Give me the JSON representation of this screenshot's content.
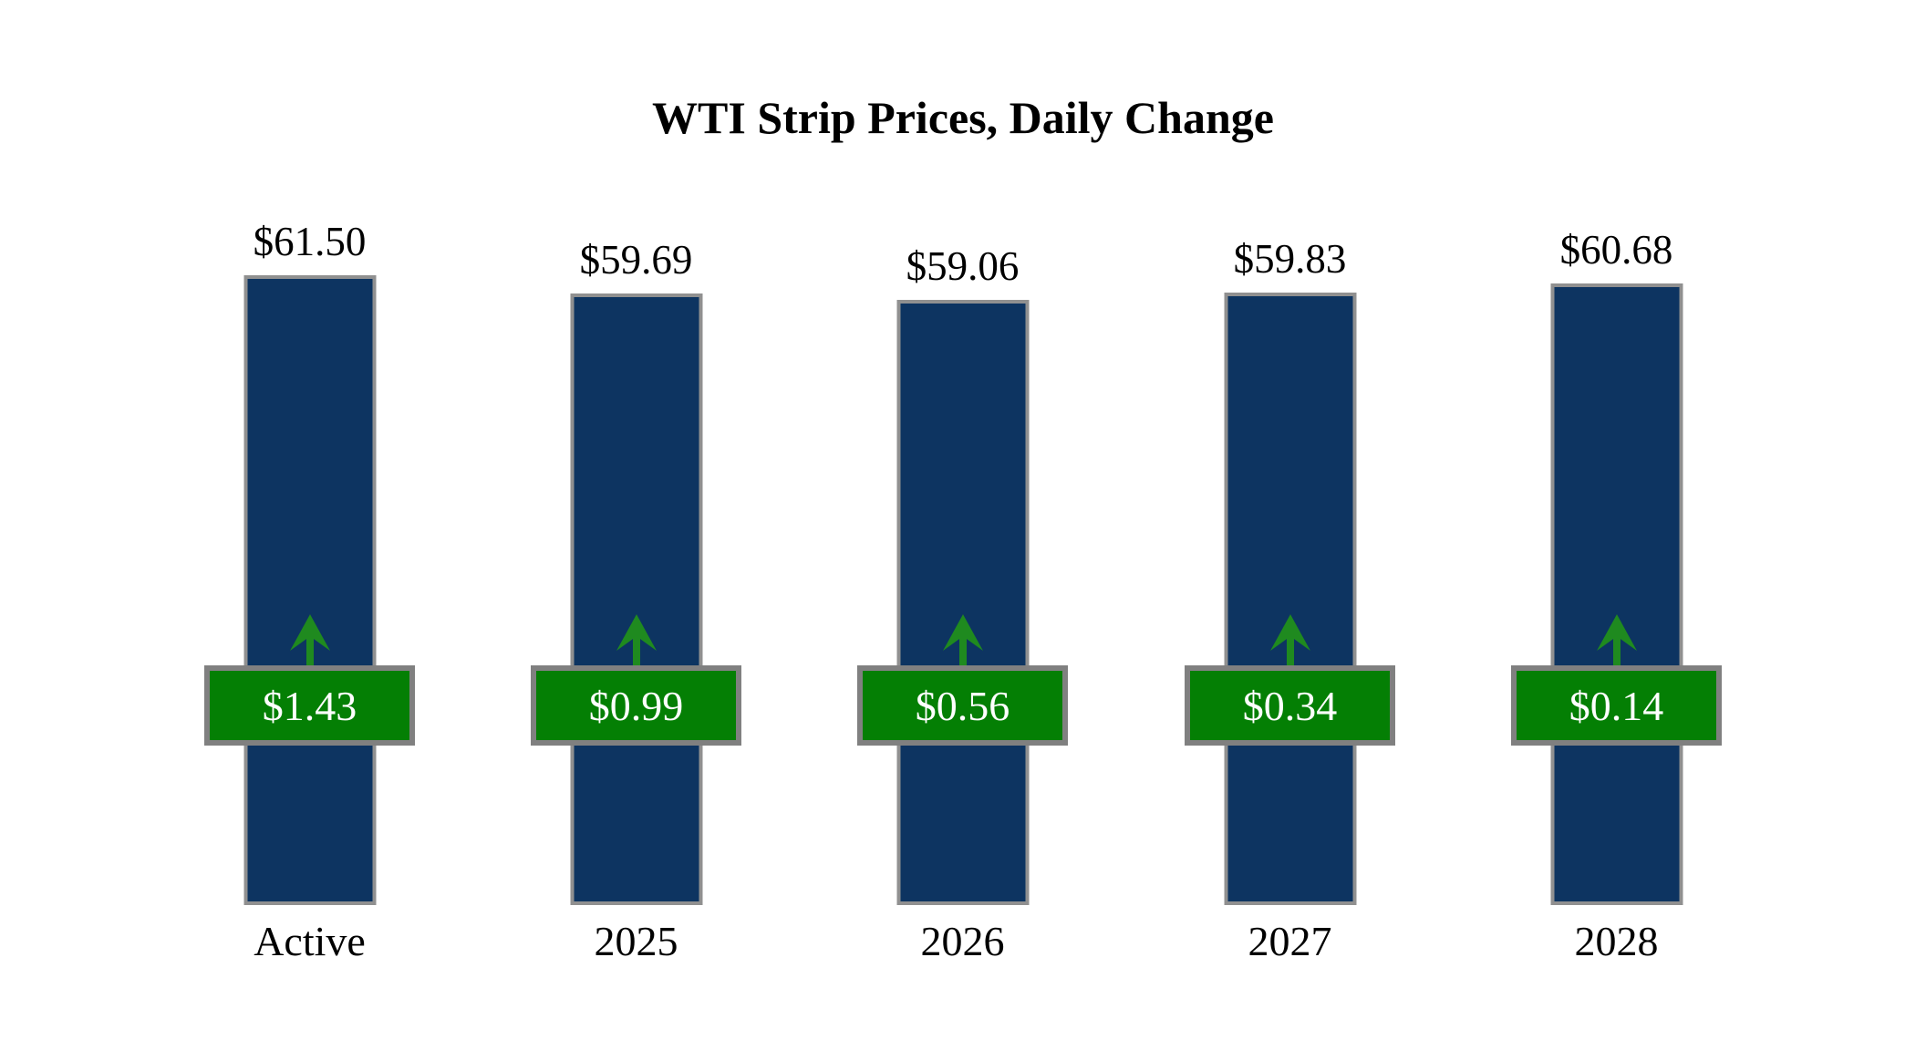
{
  "title": "WTI Strip Prices, Daily Change",
  "chart_data": {
    "type": "bar",
    "categories": [
      "Active",
      "2025",
      "2026",
      "2027",
      "2028"
    ],
    "series": [
      {
        "name": "Strip Price",
        "values": [
          61.5,
          59.69,
          59.06,
          59.83,
          60.68
        ]
      },
      {
        "name": "Daily Change",
        "values": [
          1.43,
          0.99,
          0.56,
          0.34,
          0.14
        ]
      }
    ],
    "columns": [
      {
        "category": "Active",
        "price_label": "$61.50",
        "change_label": "$1.43",
        "direction": "up"
      },
      {
        "category": "2025",
        "price_label": "$59.69",
        "change_label": "$0.99",
        "direction": "up"
      },
      {
        "category": "2026",
        "price_label": "$59.06",
        "change_label": "$0.56",
        "direction": "up"
      },
      {
        "category": "2027",
        "price_label": "$59.83",
        "change_label": "$0.34",
        "direction": "up"
      },
      {
        "category": "2028",
        "price_label": "$60.68",
        "change_label": "$0.14",
        "direction": "up"
      }
    ],
    "title": "WTI Strip Prices, Daily Change",
    "xlabel": "",
    "ylabel": "",
    "ylim": [
      0,
      61.5
    ],
    "grid": false,
    "legend": "none",
    "colors": {
      "bar_fill": "#0d3461",
      "bar_border": "#909090",
      "badge_fill": "#047f04",
      "badge_border": "#808080",
      "badge_text": "#ffffff",
      "arrow": "#1f8a1f",
      "text": "#000000",
      "background": "#ffffff"
    }
  }
}
